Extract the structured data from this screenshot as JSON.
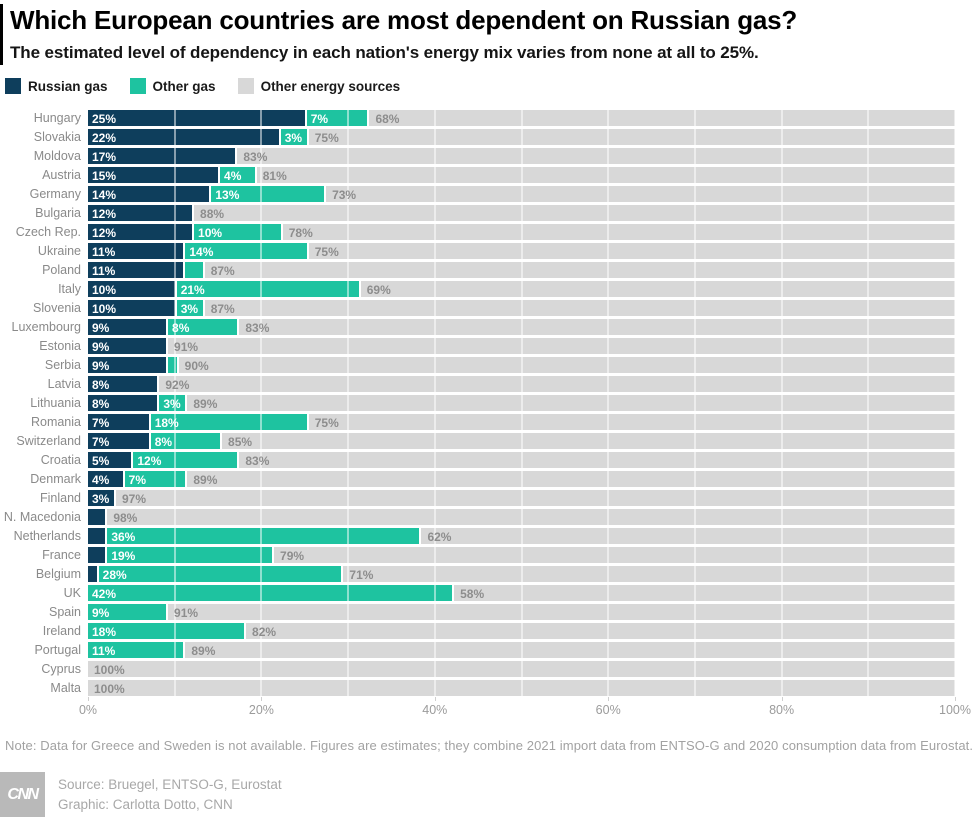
{
  "header": {
    "title": "Which European countries are most dependent on Russian gas?",
    "subtitle": "The estimated level of dependency in each nation's energy mix varies from none at all to 25%."
  },
  "legend": [
    {
      "label": "Russian gas",
      "color": "#0e3e5c",
      "icon": "russian-gas-swatch"
    },
    {
      "label": "Other gas",
      "color": "#1ec3a0",
      "icon": "other-gas-swatch"
    },
    {
      "label": "Other energy sources",
      "color": "#d8d8d8",
      "icon": "other-energy-swatch"
    }
  ],
  "theme": {
    "russian_gas": "#0e3e5c",
    "other_gas": "#1ec3a0",
    "other_energy": "#d8d8d8",
    "gridline": "rgba(255,255,255,0.5)"
  },
  "chart_data": {
    "type": "bar",
    "orientation": "horizontal",
    "stacked": true,
    "unit": "%",
    "series_names": [
      "Russian gas",
      "Other gas",
      "Other energy sources"
    ],
    "xlim": [
      0,
      100
    ],
    "x_ticks": [
      "0%",
      "20%",
      "40%",
      "60%",
      "80%",
      "100%"
    ],
    "gridlines_every_pct": 10,
    "label_min_pct": 3,
    "countries": [
      {
        "name": "Hungary",
        "russian_gas": 25,
        "other_gas": 7,
        "other_energy": 68
      },
      {
        "name": "Slovakia",
        "russian_gas": 22,
        "other_gas": 3,
        "other_energy": 75
      },
      {
        "name": "Moldova",
        "russian_gas": 17,
        "other_gas": 0,
        "other_energy": 83
      },
      {
        "name": "Austria",
        "russian_gas": 15,
        "other_gas": 4,
        "other_energy": 81
      },
      {
        "name": "Germany",
        "russian_gas": 14,
        "other_gas": 13,
        "other_energy": 73
      },
      {
        "name": "Bulgaria",
        "russian_gas": 12,
        "other_gas": 0,
        "other_energy": 88
      },
      {
        "name": "Czech Rep.",
        "russian_gas": 12,
        "other_gas": 10,
        "other_energy": 78
      },
      {
        "name": "Ukraine",
        "russian_gas": 11,
        "other_gas": 14,
        "other_energy": 75
      },
      {
        "name": "Poland",
        "russian_gas": 11,
        "other_gas": 2,
        "other_energy": 87
      },
      {
        "name": "Italy",
        "russian_gas": 10,
        "other_gas": 21,
        "other_energy": 69
      },
      {
        "name": "Slovenia",
        "russian_gas": 10,
        "other_gas": 3,
        "other_energy": 87
      },
      {
        "name": "Luxembourg",
        "russian_gas": 9,
        "other_gas": 8,
        "other_energy": 83
      },
      {
        "name": "Estonia",
        "russian_gas": 9,
        "other_gas": 0,
        "other_energy": 91
      },
      {
        "name": "Serbia",
        "russian_gas": 9,
        "other_gas": 1,
        "other_energy": 90
      },
      {
        "name": "Latvia",
        "russian_gas": 8,
        "other_gas": 0,
        "other_energy": 92
      },
      {
        "name": "Lithuania",
        "russian_gas": 8,
        "other_gas": 3,
        "other_energy": 89
      },
      {
        "name": "Romania",
        "russian_gas": 7,
        "other_gas": 18,
        "other_energy": 75
      },
      {
        "name": "Switzerland",
        "russian_gas": 7,
        "other_gas": 8,
        "other_energy": 85
      },
      {
        "name": "Croatia",
        "russian_gas": 5,
        "other_gas": 12,
        "other_energy": 83
      },
      {
        "name": "Denmark",
        "russian_gas": 4,
        "other_gas": 7,
        "other_energy": 89
      },
      {
        "name": "Finland",
        "russian_gas": 3,
        "other_gas": 0,
        "other_energy": 97
      },
      {
        "name": "N. Macedonia",
        "russian_gas": 2,
        "other_gas": 0,
        "other_energy": 98
      },
      {
        "name": "Netherlands",
        "russian_gas": 2,
        "other_gas": 36,
        "other_energy": 62
      },
      {
        "name": "France",
        "russian_gas": 2,
        "other_gas": 19,
        "other_energy": 79
      },
      {
        "name": "Belgium",
        "russian_gas": 1,
        "other_gas": 28,
        "other_energy": 71
      },
      {
        "name": "UK",
        "russian_gas": 0,
        "other_gas": 42,
        "other_energy": 58
      },
      {
        "name": "Spain",
        "russian_gas": 0,
        "other_gas": 9,
        "other_energy": 91
      },
      {
        "name": "Ireland",
        "russian_gas": 0,
        "other_gas": 18,
        "other_energy": 82
      },
      {
        "name": "Portugal",
        "russian_gas": 0,
        "other_gas": 11,
        "other_energy": 89
      },
      {
        "name": "Cyprus",
        "russian_gas": 0,
        "other_gas": 0,
        "other_energy": 100
      },
      {
        "name": "Malta",
        "russian_gas": 0,
        "other_gas": 0,
        "other_energy": 100
      }
    ]
  },
  "footer": {
    "note": "Note: Data for Greece and Sweden is not available. Figures are estimates; they combine 2021 import data from ENTSO-G and 2020 consumption data from Eurostat.",
    "logo": "CNN",
    "source": "Source: Bruegel, ENTSO-G, Eurostat",
    "graphic": "Graphic: Carlotta Dotto, CNN"
  }
}
